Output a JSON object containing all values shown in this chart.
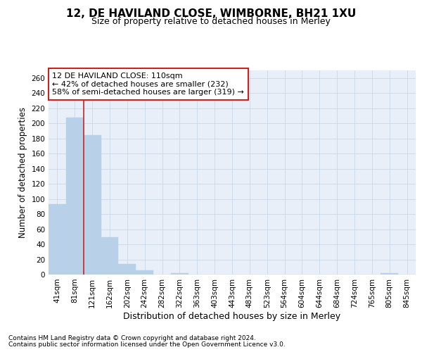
{
  "title": "12, DE HAVILAND CLOSE, WIMBORNE, BH21 1XU",
  "subtitle": "Size of property relative to detached houses in Merley",
  "xlabel": "Distribution of detached houses by size in Merley",
  "ylabel": "Number of detached properties",
  "categories": [
    "41sqm",
    "81sqm",
    "121sqm",
    "162sqm",
    "202sqm",
    "242sqm",
    "282sqm",
    "322sqm",
    "363sqm",
    "403sqm",
    "443sqm",
    "483sqm",
    "523sqm",
    "564sqm",
    "604sqm",
    "644sqm",
    "684sqm",
    "724sqm",
    "765sqm",
    "805sqm",
    "845sqm"
  ],
  "values": [
    93,
    208,
    184,
    49,
    14,
    6,
    0,
    2,
    0,
    0,
    0,
    0,
    0,
    0,
    0,
    0,
    0,
    0,
    0,
    2,
    0
  ],
  "bar_color": "#b8d0e8",
  "bar_edge_color": "#b8d0e8",
  "grid_color": "#c8d8e8",
  "background_color": "#e8eff8",
  "vline_x": 1.5,
  "vline_color": "#cc2222",
  "annotation_text": "12 DE HAVILAND CLOSE: 110sqm\n← 42% of detached houses are smaller (232)\n58% of semi-detached houses are larger (319) →",
  "annotation_box_color": "#ffffff",
  "annotation_box_edge_color": "#cc2222",
  "ylim": [
    0,
    270
  ],
  "yticks": [
    0,
    20,
    40,
    60,
    80,
    100,
    120,
    140,
    160,
    180,
    200,
    220,
    240,
    260
  ],
  "footnote1": "Contains HM Land Registry data © Crown copyright and database right 2024.",
  "footnote2": "Contains public sector information licensed under the Open Government Licence v3.0.",
  "title_fontsize": 11,
  "subtitle_fontsize": 9,
  "xlabel_fontsize": 9,
  "ylabel_fontsize": 8.5,
  "tick_fontsize": 7.5,
  "annot_fontsize": 8,
  "footnote_fontsize": 6.5
}
